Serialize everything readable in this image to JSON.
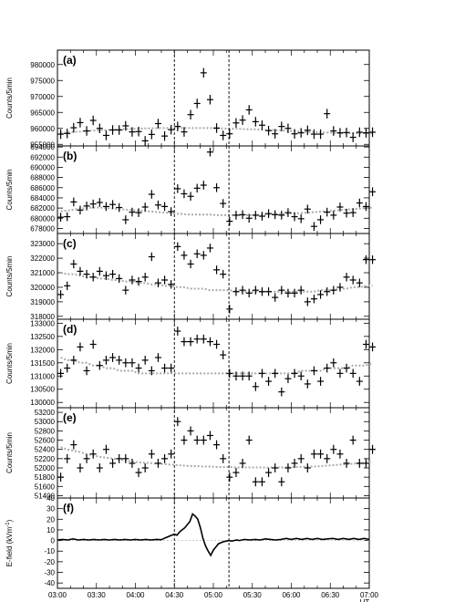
{
  "chart_data": {
    "type": "scatter",
    "x_ticks": [
      "03:00",
      "03:30",
      "04:00",
      "04:30",
      "05:00",
      "05:30",
      "06:00",
      "06:30",
      "07:00"
    ],
    "x_unit_label": "UT",
    "event_lines": [
      "04:30",
      "05:12"
    ],
    "panels": [
      {
        "label": "(a)",
        "ylabel": "Counts/5min",
        "ylim": [
          954500,
          984500
        ],
        "yticks": [
          "955000",
          "960000",
          "965000",
          "970000",
          "975000",
          "980000"
        ],
        "tick_values": [
          955000,
          960000,
          965000,
          970000,
          975000,
          980000
        ],
        "time": [
          "03:00",
          "03:05",
          "03:10",
          "03:15",
          "03:20",
          "03:25",
          "03:30",
          "03:35",
          "03:40",
          "03:45",
          "03:50",
          "03:55",
          "04:00",
          "04:05",
          "04:10",
          "04:15",
          "04:20",
          "04:25",
          "04:30",
          "04:35",
          "04:40",
          "04:45",
          "04:50",
          "04:55",
          "05:00",
          "05:05",
          "05:10",
          "05:15",
          "05:20",
          "05:25",
          "05:30",
          "05:35",
          "05:40",
          "05:45",
          "05:50",
          "05:55",
          "06:00",
          "06:05",
          "06:10",
          "06:15",
          "06:20",
          "06:25",
          "06:30",
          "06:35",
          "06:40",
          "06:45",
          "06:50",
          "06:55",
          "07:00"
        ],
        "values": [
          958200,
          958400,
          960200,
          961800,
          959200,
          962500,
          960000,
          957800,
          959500,
          959500,
          960800,
          958900,
          959000,
          956100,
          958100,
          961500,
          957600,
          959600,
          960600,
          958900,
          964300,
          967800,
          977400,
          969000,
          960100,
          957800,
          958300,
          961700,
          962600,
          965800,
          962100,
          961000,
          959300,
          958300,
          960600,
          960000,
          958300,
          958600,
          959400,
          958200,
          958200,
          964600,
          959200,
          958600,
          958700,
          957200,
          958800,
          958600,
          958800
        ],
        "trend": [
          958600,
          958700,
          958900,
          959000,
          959200,
          959300,
          959400,
          959500,
          959600,
          959700,
          959800,
          959800,
          959900,
          960000,
          960000,
          960100,
          960100,
          960100,
          960100,
          960100,
          960100,
          960100,
          960100,
          960100,
          960000,
          960000,
          959900,
          959900,
          959800,
          959700,
          959700,
          959600,
          959500,
          959400,
          959300,
          959200,
          959100,
          959000,
          958900,
          958800,
          958800,
          958700,
          958600,
          958600,
          958500,
          958500,
          958500,
          958500,
          958500
        ]
      },
      {
        "label": "(b)",
        "ylabel": "Counts/5min",
        "ylim": [
          677000,
          694200
        ],
        "yticks": [
          "678000",
          "680000",
          "682000",
          "684000",
          "686000",
          "688000",
          "690000",
          "692000",
          "694000"
        ],
        "tick_values": [
          678000,
          680000,
          682000,
          684000,
          686000,
          688000,
          690000,
          692000,
          694000
        ],
        "time": [
          "03:00",
          "03:05",
          "03:10",
          "03:15",
          "03:20",
          "03:25",
          "03:30",
          "03:35",
          "03:40",
          "03:45",
          "03:50",
          "03:55",
          "04:00",
          "04:05",
          "04:10",
          "04:15",
          "04:20",
          "04:25",
          "04:30",
          "04:35",
          "04:40",
          "04:45",
          "04:50",
          "04:55",
          "05:00",
          "05:05",
          "05:10",
          "05:15",
          "05:20",
          "05:25",
          "05:30",
          "05:35",
          "05:40",
          "05:45",
          "05:50",
          "05:55",
          "06:00",
          "06:05",
          "06:10",
          "06:15",
          "06:20",
          "06:25",
          "06:30",
          "06:35",
          "06:40",
          "06:45",
          "06:50",
          "06:55",
          "07:00"
        ],
        "values": [
          680200,
          680300,
          683200,
          681600,
          682400,
          682800,
          683100,
          682300,
          682700,
          682100,
          679700,
          681200,
          681100,
          682200,
          684700,
          682600,
          682300,
          681300,
          685800,
          684800,
          684300,
          685900,
          686500,
          693000,
          686000,
          682900,
          679400,
          680600,
          680700,
          680000,
          680600,
          680400,
          680900,
          680700,
          680600,
          681100,
          680300,
          679900,
          681800,
          678400,
          679700,
          681200,
          680600,
          682200,
          681000,
          681100,
          683000,
          682300,
          685200
        ],
        "trend": [
          681400,
          681500,
          681700,
          681900,
          682000,
          682100,
          682100,
          682000,
          681900,
          681800,
          681700,
          681600,
          681500,
          681400,
          681300,
          681200,
          681100,
          681000,
          680900,
          680800,
          680700,
          680700,
          680700,
          680700,
          680600,
          680600,
          680600,
          680600,
          680600,
          680600,
          680600,
          680700,
          680700,
          680800,
          680800,
          680900,
          681000,
          681000,
          681100,
          681200,
          681300,
          681400,
          681500,
          681600,
          681700,
          681800,
          681900,
          682000,
          682100
        ]
      },
      {
        "label": "(c)",
        "ylabel": "Counts/5min",
        "ylim": [
          317800,
          323700
        ],
        "yticks": [
          "318000",
          "319000",
          "320000",
          "321000",
          "322000",
          "323000"
        ],
        "tick_values": [
          318000,
          319000,
          320000,
          321000,
          322000,
          323000
        ],
        "time": [
          "03:00",
          "03:05",
          "03:10",
          "03:15",
          "03:20",
          "03:25",
          "03:30",
          "03:35",
          "03:40",
          "03:45",
          "03:50",
          "03:55",
          "04:00",
          "04:05",
          "04:10",
          "04:15",
          "04:20",
          "04:25",
          "04:30",
          "04:35",
          "04:40",
          "04:45",
          "04:50",
          "04:55",
          "05:00",
          "05:05",
          "05:10",
          "05:15",
          "05:20",
          "05:25",
          "05:30",
          "05:35",
          "05:40",
          "05:45",
          "05:50",
          "05:55",
          "06:00",
          "06:05",
          "06:10",
          "06:15",
          "06:20",
          "06:25",
          "06:30",
          "06:35",
          "06:40",
          "06:45",
          "06:50",
          "06:55",
          "07:00"
        ],
        "values": [
          319500,
          320100,
          321600,
          321100,
          320900,
          320700,
          321100,
          320800,
          320900,
          320600,
          319800,
          320500,
          320400,
          320700,
          322100,
          320300,
          320500,
          320200,
          322800,
          322200,
          321600,
          322300,
          322200,
          322700,
          321200,
          320900,
          318500,
          319700,
          319800,
          319600,
          319800,
          319700,
          319700,
          319300,
          319800,
          319600,
          319600,
          319800,
          319000,
          319200,
          319500,
          319700,
          319800,
          320000,
          320700,
          320500,
          320300,
          321900,
          321900
        ],
        "trend": [
          321000,
          320900,
          320900,
          320800,
          320700,
          320700,
          320600,
          320600,
          320500,
          320500,
          320400,
          320400,
          320300,
          320300,
          320200,
          320200,
          320100,
          320100,
          320000,
          320000,
          319900,
          319900,
          319900,
          319800,
          319800,
          319800,
          319800,
          319700,
          319700,
          319700,
          319700,
          319700,
          319700,
          319700,
          319700,
          319700,
          319700,
          319700,
          319700,
          319700,
          319800,
          319800,
          319800,
          319900,
          319900,
          320000,
          320000,
          320100,
          320100
        ]
      },
      {
        "label": "(d)",
        "ylabel": "Counts/5min",
        "ylim": [
          129800,
          133150
        ],
        "yticks": [
          "130000",
          "130500",
          "131000",
          "131500",
          "132000",
          "132500",
          "133000"
        ],
        "tick_values": [
          130000,
          130500,
          131000,
          131500,
          132000,
          132500,
          133000
        ],
        "time": [
          "03:00",
          "03:05",
          "03:10",
          "03:15",
          "03:20",
          "03:25",
          "03:30",
          "03:35",
          "03:40",
          "03:45",
          "03:50",
          "03:55",
          "04:00",
          "04:05",
          "04:10",
          "04:15",
          "04:20",
          "04:25",
          "04:30",
          "04:35",
          "04:40",
          "04:45",
          "04:50",
          "04:55",
          "05:00",
          "05:05",
          "05:10",
          "05:15",
          "05:20",
          "05:25",
          "05:30",
          "05:35",
          "05:40",
          "05:45",
          "05:50",
          "05:55",
          "06:00",
          "06:05",
          "06:10",
          "06:15",
          "06:20",
          "06:25",
          "06:30",
          "06:35",
          "06:40",
          "06:45",
          "06:50",
          "06:55",
          "07:00"
        ],
        "values": [
          131100,
          131300,
          131600,
          132100,
          131200,
          132200,
          131400,
          131600,
          131700,
          131600,
          131500,
          131500,
          131300,
          131600,
          131200,
          131700,
          131300,
          131300,
          132700,
          132300,
          132300,
          132400,
          132400,
          132300,
          132200,
          131800,
          131100,
          131000,
          131000,
          131000,
          130600,
          131100,
          130800,
          131100,
          130400,
          130900,
          131100,
          131000,
          130700,
          131200,
          130800,
          131300,
          131500,
          131100,
          131300,
          131100,
          130800,
          132200,
          132100
        ],
        "trend": [
          131700,
          131600,
          131600,
          131500,
          131500,
          131400,
          131400,
          131300,
          131300,
          131200,
          131200,
          131200,
          131100,
          131100,
          131100,
          131100,
          131100,
          131100,
          131100,
          131100,
          131100,
          131100,
          131100,
          131100,
          131100,
          131100,
          131100,
          131100,
          131100,
          131100,
          131100,
          131100,
          131100,
          131100,
          131100,
          131100,
          131100,
          131200,
          131200,
          131200,
          131200,
          131300,
          131300,
          131300,
          131300,
          131400,
          131400,
          131400,
          131500
        ]
      },
      {
        "label": "(e)",
        "ylabel": "Counts/5min",
        "ylim": [
          51350,
          53300
        ],
        "yticks": [
          "51400",
          "51600",
          "51800",
          "52000",
          "52200",
          "52400",
          "52600",
          "52800",
          "53000",
          "53200"
        ],
        "tick_values": [
          51400,
          51600,
          51800,
          52000,
          52200,
          52400,
          52600,
          52800,
          53000,
          53200
        ],
        "time": [
          "03:00",
          "03:05",
          "03:10",
          "03:15",
          "03:20",
          "03:25",
          "03:30",
          "03:35",
          "03:40",
          "03:45",
          "03:50",
          "03:55",
          "04:00",
          "04:05",
          "04:10",
          "04:15",
          "04:20",
          "04:25",
          "04:30",
          "04:35",
          "04:40",
          "04:45",
          "04:50",
          "04:55",
          "05:00",
          "05:05",
          "05:10",
          "05:15",
          "05:20",
          "05:25",
          "05:30",
          "05:35",
          "05:40",
          "05:45",
          "05:50",
          "05:55",
          "06:00",
          "06:05",
          "06:10",
          "06:15",
          "06:20",
          "06:25",
          "06:30",
          "06:35",
          "06:40",
          "06:45",
          "06:50",
          "06:55",
          "07:00"
        ],
        "values": [
          51800,
          52200,
          52500,
          52000,
          52200,
          52300,
          52000,
          52400,
          52100,
          52200,
          52200,
          52100,
          51900,
          52000,
          52300,
          52100,
          52200,
          52300,
          53000,
          52600,
          52800,
          52600,
          52600,
          52700,
          52500,
          52200,
          51800,
          51900,
          52100,
          52600,
          51700,
          51700,
          51900,
          52000,
          51700,
          52000,
          52100,
          52200,
          52000,
          52300,
          52300,
          52200,
          52400,
          52300,
          52100,
          52600,
          52100,
          52100,
          52400
        ],
        "trend": [
          52450,
          52400,
          52370,
          52340,
          52300,
          52270,
          52240,
          52220,
          52200,
          52180,
          52160,
          52140,
          52120,
          52110,
          52100,
          52090,
          52080,
          52070,
          52060,
          52050,
          52040,
          52040,
          52030,
          52030,
          52020,
          52020,
          52020,
          52010,
          52010,
          52010,
          52010,
          52010,
          52010,
          52010,
          52010,
          52010,
          52020,
          52020,
          52030,
          52030,
          52040,
          52050,
          52060,
          52070,
          52080,
          52090,
          52100,
          52110,
          52120
        ]
      },
      {
        "label": "(f)",
        "ylabel": "E-field (kVm",
        "ylabel_sup": "-1",
        "ylabel_close": ")",
        "ylim": [
          -45,
          40
        ],
        "yticks": [
          "-40",
          "-30",
          "-20",
          "-10",
          "0",
          "10",
          "20",
          "30",
          "40"
        ],
        "tick_values": [
          -40,
          -30,
          -20,
          -10,
          0,
          10,
          20,
          30,
          40
        ],
        "type": "line",
        "x_minutes": [
          0,
          4,
          8,
          12,
          16,
          20,
          24,
          28,
          32,
          36,
          40,
          44,
          48,
          52,
          56,
          60,
          64,
          68,
          72,
          76,
          80,
          82,
          84,
          86,
          88,
          90,
          92,
          94,
          96,
          98,
          100,
          102,
          104,
          106,
          108,
          110,
          112,
          114,
          116,
          118,
          120,
          122,
          124,
          126,
          128,
          130,
          132,
          134,
          136,
          138,
          140,
          144,
          148,
          152,
          156,
          160,
          164,
          168,
          172,
          176,
          180,
          184,
          188,
          192,
          196,
          200,
          204,
          208,
          212,
          216,
          220,
          224,
          228,
          232,
          236,
          240
        ],
        "values": [
          0.5,
          1,
          0.5,
          1.5,
          0.5,
          1,
          0.5,
          1,
          0.5,
          1,
          0.5,
          1,
          0.5,
          1,
          0.5,
          1,
          0.5,
          1,
          0.5,
          1,
          0.8,
          2,
          3,
          4,
          5,
          6,
          5,
          8,
          10,
          12,
          15,
          18,
          25,
          23,
          20,
          12,
          2,
          -5,
          -10,
          -14,
          -9,
          -6,
          -3,
          -2,
          -1,
          -0.5,
          0,
          -0.5,
          0,
          0.5,
          0,
          1,
          0.5,
          1,
          0.5,
          1.5,
          1,
          0.5,
          1,
          2,
          1,
          2,
          1,
          2,
          1,
          2,
          1,
          1.5,
          2,
          1,
          2,
          1,
          2,
          1,
          2,
          1
        ]
      }
    ]
  }
}
